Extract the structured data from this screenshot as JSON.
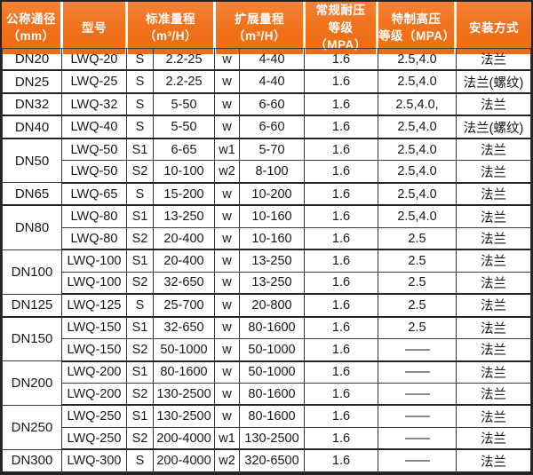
{
  "accent_color": "#f0721c",
  "grid_color": "#3a3a3a",
  "outer_border_color": "#232323",
  "header_text_color": "#ffffff",
  "table": {
    "header": [
      {
        "id": "nominal-diameter",
        "lines": [
          "公称通径",
          "（mm）"
        ],
        "subcolumns": 1
      },
      {
        "id": "model",
        "lines": [
          "型号"
        ],
        "subcolumns": 1
      },
      {
        "id": "standard-range",
        "lines": [
          "标准量程",
          "（m³/H）"
        ],
        "subcolumns": 2
      },
      {
        "id": "extended-range",
        "lines": [
          "扩展量程",
          "（m³/H）"
        ],
        "subcolumns": 2
      },
      {
        "id": "normal-pressure",
        "lines": [
          "常规耐压",
          "等级（MPA）"
        ],
        "subcolumns": 1
      },
      {
        "id": "high-pressure",
        "lines": [
          "特制高压",
          "等级（MPA）"
        ],
        "subcolumns": 1
      },
      {
        "id": "installation",
        "lines": [
          "安装方式"
        ],
        "subcolumns": 1
      }
    ],
    "groups": [
      {
        "dn": "DN20",
        "rows": [
          {
            "model": "LWQ-20",
            "std_code": "S",
            "std_range": "2.2-25",
            "ext_code": "w",
            "ext_range": "4-40",
            "normal_mpa": "1.6",
            "high_mpa": "2.5,4.0",
            "install": "法兰"
          }
        ]
      },
      {
        "dn": "DN25",
        "rows": [
          {
            "model": "LWQ-25",
            "std_code": "S",
            "std_range": "2.2-25",
            "ext_code": "w",
            "ext_range": "4-40",
            "normal_mpa": "1.6",
            "high_mpa": "2.5,4.0",
            "install": "法兰(螺纹)"
          }
        ]
      },
      {
        "dn": "DN32",
        "rows": [
          {
            "model": "LWQ-32",
            "std_code": "S",
            "std_range": "5-50",
            "ext_code": "w",
            "ext_range": "6-60",
            "normal_mpa": "1.6",
            "high_mpa": "2.5,4.0,",
            "install": "法兰"
          }
        ]
      },
      {
        "dn": "DN40",
        "rows": [
          {
            "model": "LWQ-40",
            "std_code": "S",
            "std_range": "5-50",
            "ext_code": "w",
            "ext_range": "6-60",
            "normal_mpa": "1.6",
            "high_mpa": "2.5,4.0",
            "install": "法兰(螺纹)"
          }
        ]
      },
      {
        "dn": "DN50",
        "rows": [
          {
            "model": "LWQ-50",
            "std_code": "S1",
            "std_range": "6-65",
            "ext_code": "w1",
            "ext_range": "5-70",
            "normal_mpa": "1.6",
            "high_mpa": "2.5,4.0",
            "install": "法兰"
          },
          {
            "model": "LWQ-50",
            "std_code": "S2",
            "std_range": "10-100",
            "ext_code": "w2",
            "ext_range": "8-100",
            "normal_mpa": "1.6",
            "high_mpa": "2.5,4.0",
            "install": "法兰"
          }
        ]
      },
      {
        "dn": "DN65",
        "rows": [
          {
            "model": "LWQ-65",
            "std_code": "S",
            "std_range": "15-200",
            "ext_code": "w",
            "ext_range": "10-200",
            "normal_mpa": "1.6",
            "high_mpa": "2.5,4.0",
            "install": "法兰"
          }
        ]
      },
      {
        "dn": "DN80",
        "rows": [
          {
            "model": "LWQ-80",
            "std_code": "S1",
            "std_range": "13-250",
            "ext_code": "w",
            "ext_range": "10-160",
            "normal_mpa": "1.6",
            "high_mpa": "2.5,4.0",
            "install": "法兰"
          },
          {
            "model": "LWQ-80",
            "std_code": "S2",
            "std_range": "20-400",
            "ext_code": "w",
            "ext_range": "10-160",
            "normal_mpa": "1.6",
            "high_mpa": "2.5",
            "install": "法兰"
          }
        ]
      },
      {
        "dn": "DN100",
        "rows": [
          {
            "model": "LWQ-100",
            "std_code": "S1",
            "std_range": "20-400",
            "ext_code": "w",
            "ext_range": "13-250",
            "normal_mpa": "1.6",
            "high_mpa": "2.5",
            "install": "法兰"
          },
          {
            "model": "LWQ-100",
            "std_code": "S2",
            "std_range": "32-650",
            "ext_code": "w",
            "ext_range": "13-250",
            "normal_mpa": "1.6",
            "high_mpa": "2.5",
            "install": "法兰"
          }
        ]
      },
      {
        "dn": "DN125",
        "rows": [
          {
            "model": "LWQ-125",
            "std_code": "S",
            "std_range": "25-700",
            "ext_code": "w",
            "ext_range": "20-800",
            "normal_mpa": "1.6",
            "high_mpa": "2.5",
            "install": "法兰"
          }
        ]
      },
      {
        "dn": "DN150",
        "rows": [
          {
            "model": "LWQ-150",
            "std_code": "S1",
            "std_range": "32-650",
            "ext_code": "w",
            "ext_range": "80-1600",
            "normal_mpa": "1.6",
            "high_mpa": "2.5",
            "install": "法兰"
          },
          {
            "model": "LWQ-150",
            "std_code": "S2",
            "std_range": "50-1000",
            "ext_code": "w",
            "ext_range": "50-1000",
            "normal_mpa": "1.6",
            "high_mpa": "——",
            "install": "法兰"
          }
        ]
      },
      {
        "dn": "DN200",
        "rows": [
          {
            "model": "LWQ-200",
            "std_code": "S1",
            "std_range": "80-1600",
            "ext_code": "w",
            "ext_range": "50-1000",
            "normal_mpa": "1.6",
            "high_mpa": "——",
            "install": "法兰"
          },
          {
            "model": "LWQ-200",
            "std_code": "S2",
            "std_range": "130-2500",
            "ext_code": "w",
            "ext_range": "80-1600",
            "normal_mpa": "1.6",
            "high_mpa": "——",
            "install": "法兰"
          }
        ]
      },
      {
        "dn": "DN250",
        "rows": [
          {
            "model": "LWQ-250",
            "std_code": "S1",
            "std_range": "130-2500",
            "ext_code": "w",
            "ext_range": "80-1600",
            "normal_mpa": "1.6",
            "high_mpa": "——",
            "install": "法兰"
          },
          {
            "model": "LWQ-250",
            "std_code": "S2",
            "std_range": "200-4000",
            "ext_code": "w1",
            "ext_range": "130-2500",
            "normal_mpa": "1.6",
            "high_mpa": "——",
            "install": "法兰"
          }
        ]
      },
      {
        "dn": "DN300",
        "rows": [
          {
            "model": "LWQ-300",
            "std_code": "S",
            "std_range": "200-4000",
            "ext_code": "w2",
            "ext_range": "320-6500",
            "normal_mpa": "1.6",
            "high_mpa": "——",
            "install": "法兰"
          }
        ]
      }
    ]
  }
}
